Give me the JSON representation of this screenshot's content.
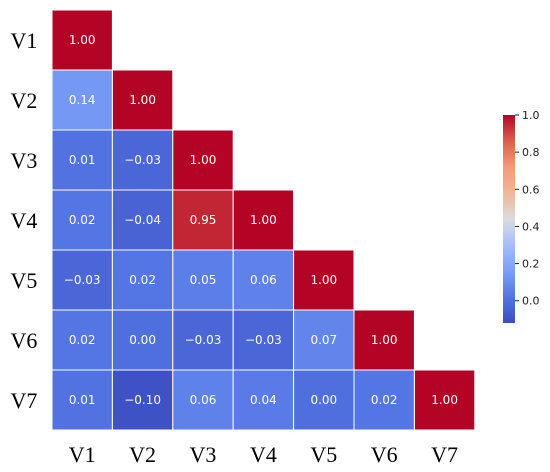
{
  "chart_data": {
    "type": "heatmap",
    "variables": [
      "V1",
      "V2",
      "V3",
      "V4",
      "V5",
      "V6",
      "V7"
    ],
    "matrix": [
      [
        1.0
      ],
      [
        0.14,
        1.0
      ],
      [
        0.01,
        -0.03,
        1.0
      ],
      [
        0.02,
        -0.04,
        0.95,
        1.0
      ],
      [
        -0.03,
        0.02,
        0.05,
        0.06,
        1.0
      ],
      [
        0.02,
        0.0,
        -0.03,
        -0.03,
        0.07,
        1.0
      ],
      [
        0.01,
        -0.1,
        0.06,
        0.04,
        0.0,
        0.02,
        1.0
      ]
    ],
    "cell_labels": [
      [
        "1.00"
      ],
      [
        "0.14",
        "1.00"
      ],
      [
        "0.01",
        "−0.03",
        "1.00"
      ],
      [
        "0.02",
        "−0.04",
        "0.95",
        "1.00"
      ],
      [
        "−0.03",
        "0.02",
        "0.05",
        "0.06",
        "1.00"
      ],
      [
        "0.02",
        "0.00",
        "−0.03",
        "−0.03",
        "0.07",
        "1.00"
      ],
      [
        "0.01",
        "−0.10",
        "0.06",
        "0.04",
        "0.00",
        "0.02",
        "1.00"
      ]
    ],
    "colormap": "coolwarm",
    "color_range": [
      -0.12,
      1.0
    ],
    "colorbar": {
      "ticks": [
        0.0,
        0.2,
        0.4,
        0.6,
        0.8,
        1.0
      ],
      "tick_labels": [
        "0.0",
        "0.2",
        "0.4",
        "0.6",
        "0.8",
        "1.0"
      ]
    },
    "grid_line_color": "#ffffff",
    "title": "",
    "xlabel": "",
    "ylabel": ""
  }
}
